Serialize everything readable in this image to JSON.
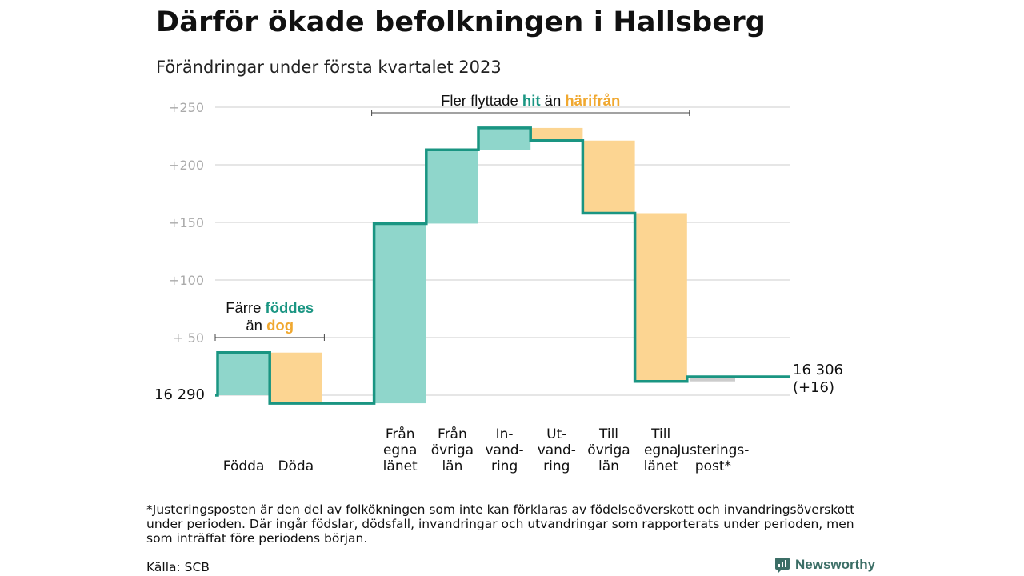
{
  "header": {
    "title": "Därför ökade befolkningen i Hallsberg",
    "subtitle": "Förändringar under första kvartalet 2023"
  },
  "footer": {
    "footnote": "*Justeringsposten är den del av folkökningen som inte kan förklaras av födelseöverskott och invandringsöverskott under perioden. Där ingår födslar, dödsfall, invandringar och utvandringar som rapporterats under perioden, men som inträffat före periodens början.",
    "source": "Källa: SCB",
    "brand": "Newsworthy"
  },
  "colors": {
    "increase": "#8fd6cb",
    "decrease": "#fcd592",
    "adjustment": "#cccccc",
    "line": "#1a9582",
    "teal_text": "#1a9582",
    "orange_text": "#f0a830",
    "grid": "#dddddd",
    "tick": "#aaaaaa"
  },
  "chart_data": {
    "type": "waterfall",
    "title": "Därför ökade befolkningen i Hallsberg",
    "subtitle": "Förändringar under första kvartalet 2023",
    "start": {
      "label": "16 290",
      "value": 0
    },
    "end": {
      "label": "16 306",
      "label2": "(+16)",
      "value": 16
    },
    "ylim": [
      -10,
      250
    ],
    "yticks": [
      {
        "value": 250,
        "label": "+250"
      },
      {
        "value": 200,
        "label": "+200"
      },
      {
        "value": 150,
        "label": "+150"
      },
      {
        "value": 100,
        "label": "+100"
      },
      {
        "value": 50,
        "label": "+ 50"
      }
    ],
    "grid": true,
    "steps": [
      {
        "label_lines": [
          "Födda"
        ],
        "from": 0,
        "to": 37,
        "kind": "increase"
      },
      {
        "label_lines": [
          "Döda"
        ],
        "from": 37,
        "to": -7,
        "kind": "decrease"
      },
      {
        "label_lines": [
          ""
        ],
        "from": -7,
        "to": -7,
        "kind": "gap"
      },
      {
        "label_lines": [
          "Från",
          "egna",
          "länet"
        ],
        "from": -7,
        "to": 149,
        "kind": "increase"
      },
      {
        "label_lines": [
          "Från",
          "övriga",
          "län"
        ],
        "from": 149,
        "to": 213,
        "kind": "increase"
      },
      {
        "label_lines": [
          "In-",
          "vand-",
          "ring"
        ],
        "from": 213,
        "to": 232,
        "kind": "increase"
      },
      {
        "label_lines": [
          "Ut-",
          "vand-",
          "ring"
        ],
        "from": 232,
        "to": 221,
        "kind": "decrease"
      },
      {
        "label_lines": [
          "Till",
          "övriga",
          "län"
        ],
        "from": 221,
        "to": 158,
        "kind": "decrease"
      },
      {
        "label_lines": [
          "Till",
          "egna",
          "länet"
        ],
        "from": 158,
        "to": 12,
        "kind": "decrease"
      },
      {
        "label_lines": [
          "Justerings-",
          "post*"
        ],
        "from": 12,
        "to": 16,
        "kind": "adjustment"
      }
    ],
    "annotations": [
      {
        "lines": [
          [
            {
              "text": "Färre ",
              "style": "plain"
            },
            {
              "text": "föddes",
              "style": "teal"
            }
          ],
          [
            {
              "text": "än ",
              "style": "plain"
            },
            {
              "text": "dog",
              "style": "orange"
            }
          ]
        ],
        "from_step": 0,
        "to_step": 1
      },
      {
        "lines": [
          [
            {
              "text": "Fler flyttade ",
              "style": "plain"
            },
            {
              "text": "hit",
              "style": "teal"
            },
            {
              "text": " än ",
              "style": "plain"
            },
            {
              "text": "härifrån",
              "style": "orange"
            }
          ]
        ],
        "from_step": 3,
        "to_step": 8
      }
    ]
  }
}
